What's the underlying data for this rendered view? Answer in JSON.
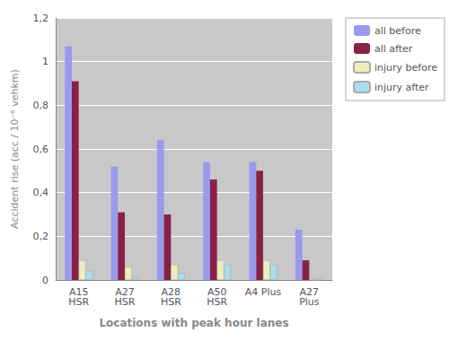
{
  "chart_data": {
    "type": "bar",
    "xlabel": "Locations with peak hour lanes",
    "ylabel": "Accident rise (acc / 10⁻⁶ vehkm)",
    "categories": [
      "A15\nHSR",
      "A27\nHSR",
      "A28\nHSR",
      "A50\nHSR",
      "A4 Plus",
      "A27\nPlus"
    ],
    "series": [
      {
        "name": "all before",
        "color": "#9999ee",
        "values": [
          1.07,
          0.52,
          0.64,
          0.54,
          0.54,
          0.23
        ]
      },
      {
        "name": "all after",
        "color": "#882244",
        "values": [
          0.91,
          0.31,
          0.3,
          0.46,
          0.5,
          0.09
        ]
      },
      {
        "name": "injury before",
        "color": "#eeeebb",
        "values": [
          0.09,
          0.06,
          0.07,
          0.09,
          0.09,
          0.0
        ]
      },
      {
        "name": "injury after",
        "color": "#aaddee",
        "values": [
          0.04,
          0.01,
          0.03,
          0.07,
          0.07,
          0.01
        ]
      }
    ],
    "ylim": [
      0,
      1.2
    ],
    "yticks": [
      0,
      {
        "value": 0.2,
        "label": "0,2"
      },
      {
        "value": 0.4,
        "label": "0,4"
      },
      {
        "value": 0.6,
        "label": "0,6"
      },
      {
        "value": 0.8,
        "label": "0,8"
      },
      1,
      {
        "value": 1.2,
        "label": "1,2"
      }
    ],
    "grid": true,
    "legend": "right"
  }
}
